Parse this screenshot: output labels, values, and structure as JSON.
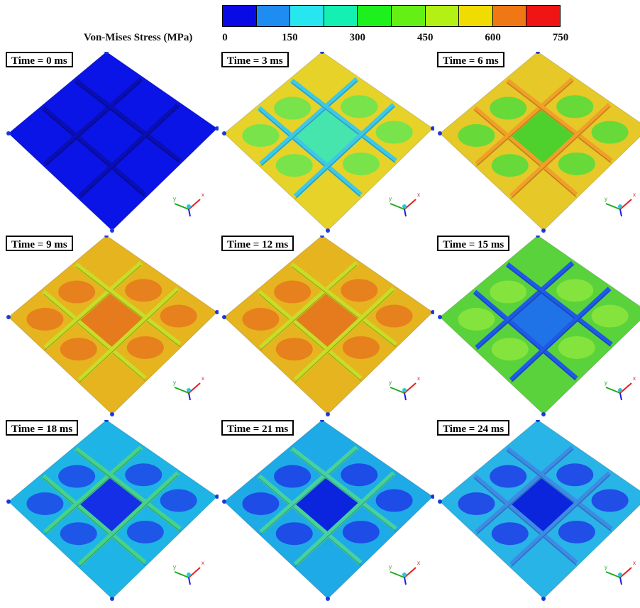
{
  "legend": {
    "title": "Von-Mises Stress (MPa)",
    "ticks": [
      "0",
      "150",
      "300",
      "450",
      "600",
      "750"
    ],
    "colors": [
      "#0a0ae6",
      "#1e8cf0",
      "#28e6f0",
      "#14f0b4",
      "#1ef01e",
      "#64f014",
      "#b4f014",
      "#f0dc00",
      "#f07814",
      "#f01414"
    ]
  },
  "panels": [
    {
      "label": "Time = 0 ms",
      "plate": "#0a14e6",
      "rib": "#0a0fb4",
      "blob": "#0a14e6",
      "center": "#0a14e6"
    },
    {
      "label": "Time = 3 ms",
      "plate": "#e6d228",
      "rib": "#3cc8e6",
      "blob": "#64e650",
      "center": "#3ce6b4"
    },
    {
      "label": "Time = 6 ms",
      "plate": "#e6c828",
      "rib": "#f0a028",
      "blob": "#50dc3c",
      "center": "#46d22d"
    },
    {
      "label": "Time = 9 ms",
      "plate": "#e6b41e",
      "rib": "#c8dc28",
      "blob": "#e6781e",
      "center": "#e6781e"
    },
    {
      "label": "Time = 12 ms",
      "plate": "#e6b41e",
      "rib": "#c8dc28",
      "blob": "#e6781e",
      "center": "#e6781e"
    },
    {
      "label": "Time = 15 ms",
      "plate": "#5ad23c",
      "rib": "#1e5ae6",
      "blob": "#8ce63c",
      "center": "#1e6ef0"
    },
    {
      "label": "Time = 18 ms",
      "plate": "#1eb4e6",
      "rib": "#46d28c",
      "blob": "#1e46e6",
      "center": "#1428e6"
    },
    {
      "label": "Time = 21 ms",
      "plate": "#1eaae6",
      "rib": "#46d2a0",
      "blob": "#1e3ce6",
      "center": "#0a1edc"
    },
    {
      "label": "Time = 24 ms",
      "plate": "#28b4e6",
      "rib": "#3c8ce6",
      "blob": "#1e3ce6",
      "center": "#0a1edc"
    }
  ],
  "triad": {
    "y": "y",
    "x": "x"
  }
}
